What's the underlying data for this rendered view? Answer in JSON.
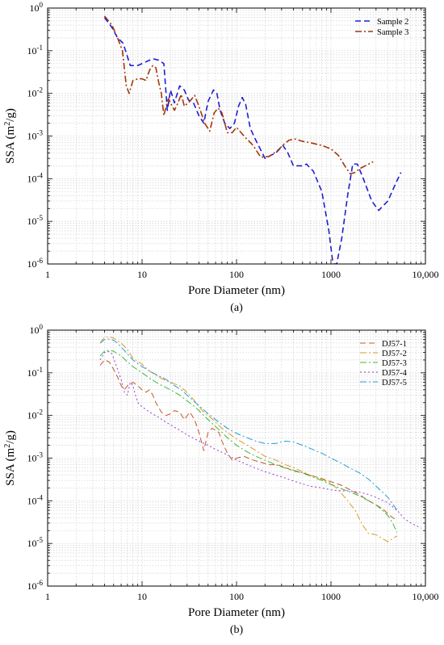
{
  "chart_data": [
    {
      "type": "line",
      "panel_label": "(a)",
      "xlabel": "Pore Diameter (nm)",
      "ylabel": "SSA (m²/g)",
      "xscale": "log",
      "yscale": "log",
      "xlim": [
        1,
        10000
      ],
      "ylim": [
        1e-06,
        1
      ],
      "x_tick_labels": [
        "1",
        "10",
        "100",
        "1000",
        "10,000"
      ],
      "y_tick_labels": [
        "10^-6",
        "10^-5",
        "10^-4",
        "10^-3",
        "10^-2",
        "10^-1",
        "10^0"
      ],
      "grid": true,
      "legend_position": "top-right",
      "series": [
        {
          "name": "Sample 2",
          "color": "#1f1fd1",
          "dash": "dashed",
          "x": [
            4,
            4.8,
            5.5,
            6.3,
            7.5,
            9,
            11,
            13,
            15,
            17,
            18.5,
            20,
            22,
            25,
            28,
            31,
            35,
            40,
            45,
            50,
            57,
            62,
            67,
            75,
            85,
            95,
            105,
            115,
            125,
            140,
            160,
            200,
            260,
            310,
            350,
            400,
            450,
            500,
            550,
            650,
            800,
            950,
            1050,
            1150,
            1300,
            1500,
            1700,
            1900,
            2200,
            2700,
            3200,
            4000,
            5000,
            5500
          ],
          "y": [
            0.6,
            0.35,
            0.2,
            0.15,
            0.045,
            0.045,
            0.055,
            0.065,
            0.06,
            0.05,
            0.004,
            0.012,
            0.006,
            0.015,
            0.012,
            0.007,
            0.006,
            0.003,
            0.002,
            0.0065,
            0.012,
            0.01,
            0.004,
            0.002,
            0.0015,
            0.002,
            0.005,
            0.008,
            0.0055,
            0.0015,
            0.0008,
            0.0003,
            0.0004,
            0.0006,
            0.0004,
            0.0002,
            0.0002,
            0.0002,
            0.00022,
            0.00015,
            5e-05,
            6e-06,
            1e-06,
            1e-06,
            4e-06,
            4e-05,
            0.00022,
            0.00022,
            0.0001,
            3e-05,
            1.8e-05,
            3e-05,
            9e-05,
            0.00014
          ]
        },
        {
          "name": "Sample 3",
          "color": "#a3360b",
          "dash": "dashdot",
          "x": [
            4,
            4.8,
            5.5,
            6.2,
            6.8,
            7.3,
            8,
            9,
            10,
            11,
            12,
            13,
            14,
            15,
            16,
            17,
            18,
            19,
            20,
            22,
            24,
            26,
            28,
            32,
            36,
            40,
            46,
            52,
            58,
            64,
            70,
            80,
            90,
            100,
            120,
            150,
            180,
            220,
            270,
            320,
            360,
            420,
            500,
            600,
            800,
            1000,
            1200,
            1400,
            1600,
            1800,
            2000,
            2400,
            2800
          ],
          "y": [
            0.65,
            0.4,
            0.2,
            0.1,
            0.015,
            0.01,
            0.02,
            0.022,
            0.022,
            0.02,
            0.035,
            0.045,
            0.04,
            0.018,
            0.01,
            0.003,
            0.005,
            0.0075,
            0.006,
            0.004,
            0.006,
            0.0095,
            0.005,
            0.0065,
            0.009,
            0.005,
            0.002,
            0.0013,
            0.0035,
            0.0045,
            0.0035,
            0.0012,
            0.0012,
            0.0016,
            0.001,
            0.0006,
            0.00032,
            0.00033,
            0.00045,
            0.00065,
            0.0008,
            0.00085,
            0.00075,
            0.0007,
            0.0006,
            0.0005,
            0.00035,
            0.0002,
            0.00013,
            0.00014,
            0.00017,
            0.00021,
            0.00025
          ]
        }
      ]
    },
    {
      "type": "line",
      "panel_label": "(b)",
      "xlabel": "Pore Diameter (nm)",
      "ylabel": "SSA (m²/g)",
      "xscale": "log",
      "yscale": "log",
      "xlim": [
        1,
        10000
      ],
      "ylim": [
        1e-06,
        1
      ],
      "x_tick_labels": [
        "1",
        "10",
        "100",
        "1000",
        "10,000"
      ],
      "y_tick_labels": [
        "10^-6",
        "10^-5",
        "10^-4",
        "10^-3",
        "10^-2",
        "10^-1",
        "10^0"
      ],
      "grid": true,
      "legend_position": "top-right",
      "series": [
        {
          "name": "DJ57-1",
          "color": "#c2552b",
          "dash": "dashed",
          "x": [
            3.6,
            4,
            4.5,
            5,
            5.5,
            6,
            6.5,
            7,
            8,
            9,
            10,
            11,
            12,
            13,
            14,
            16,
            18,
            20,
            22,
            25,
            28,
            32,
            36,
            40,
            45,
            50,
            55,
            60,
            65,
            70,
            80,
            90,
            100,
            120,
            150,
            180,
            220,
            270,
            330,
            400,
            500,
            600,
            800,
            1000,
            1300,
            1600,
            2000,
            2500,
            3000,
            3500,
            4000,
            4500,
            5000
          ],
          "y": [
            0.15,
            0.2,
            0.18,
            0.12,
            0.08,
            0.05,
            0.04,
            0.05,
            0.06,
            0.05,
            0.04,
            0.035,
            0.04,
            0.03,
            0.02,
            0.012,
            0.01,
            0.011,
            0.013,
            0.012,
            0.008,
            0.012,
            0.008,
            0.004,
            0.0015,
            0.004,
            0.005,
            0.0045,
            0.004,
            0.0025,
            0.0013,
            0.0009,
            0.001,
            0.0011,
            0.0009,
            0.0008,
            0.0007,
            0.0007,
            0.0006,
            0.0005,
            0.00045,
            0.0004,
            0.00033,
            0.00028,
            0.00023,
            0.00018,
            0.00014,
            0.0001,
            8e-05,
            6.5e-05,
            5e-05,
            4e-05,
            3.5e-05
          ]
        },
        {
          "name": "DJ57-2",
          "color": "#d89b28",
          "dash": "dashdot",
          "x": [
            3.6,
            4,
            4.5,
            5,
            6,
            7,
            8,
            10,
            12,
            15,
            18,
            20,
            22,
            25,
            28,
            32,
            36,
            40,
            45,
            50,
            60,
            70,
            80,
            100,
            130,
            160,
            200,
            260,
            330,
            400,
            500,
            600,
            800,
            1000,
            1200,
            1500,
            1800,
            2100,
            2500,
            3000,
            3500,
            4000,
            4500,
            5000
          ],
          "y": [
            0.5,
            0.68,
            0.7,
            0.65,
            0.5,
            0.35,
            0.22,
            0.16,
            0.11,
            0.08,
            0.065,
            0.06,
            0.055,
            0.05,
            0.04,
            0.03,
            0.022,
            0.016,
            0.012,
            0.01,
            0.007,
            0.005,
            0.004,
            0.0028,
            0.002,
            0.0015,
            0.0011,
            0.0009,
            0.0007,
            0.0006,
            0.00048,
            0.0004,
            0.00032,
            0.00026,
            0.00018,
            0.0001,
            6e-05,
            3e-05,
            1.7e-05,
            1.6e-05,
            1.3e-05,
            1.1e-05,
            1.3e-05,
            1.5e-05
          ]
        },
        {
          "name": "DJ57-3",
          "color": "#3cb83c",
          "dash": "dashdot",
          "x": [
            3.6,
            4,
            4.5,
            5,
            6,
            7,
            8,
            10,
            12,
            15,
            18,
            20,
            25,
            30,
            35,
            40,
            45,
            50,
            60,
            70,
            80,
            100,
            130,
            160,
            200,
            260,
            330,
            400,
            500,
            600,
            800,
            1000,
            1300,
            1600,
            2000,
            2500,
            3000,
            3500,
            4000,
            4500,
            5000
          ],
          "y": [
            0.25,
            0.32,
            0.34,
            0.32,
            0.25,
            0.18,
            0.14,
            0.1,
            0.075,
            0.055,
            0.045,
            0.04,
            0.03,
            0.022,
            0.017,
            0.013,
            0.01,
            0.008,
            0.0055,
            0.004,
            0.003,
            0.002,
            0.0014,
            0.0011,
            0.0009,
            0.0007,
            0.00058,
            0.00052,
            0.00045,
            0.00038,
            0.0003,
            0.00024,
            0.00019,
            0.00016,
            0.00013,
            0.0001,
            8e-05,
            6e-05,
            4.5e-05,
            3e-05,
            1.8e-05
          ]
        },
        {
          "name": "DJ57-4",
          "color": "#9a3bd4",
          "dash": "dotted",
          "x": [
            3.6,
            4,
            4.3,
            4.7,
            5,
            5.5,
            6,
            6.5,
            7,
            7.5,
            8,
            8.5,
            9,
            10,
            12,
            15,
            20,
            25,
            30,
            40,
            50,
            60,
            80,
            100,
            130,
            160,
            200,
            260,
            330,
            400,
            500,
            600,
            800,
            1000,
            1300,
            1600,
            2000,
            2500,
            3000,
            4000,
            5000,
            6000,
            7000,
            8000,
            9000
          ],
          "y": [
            0.2,
            0.3,
            0.32,
            0.3,
            0.22,
            0.12,
            0.07,
            0.035,
            0.03,
            0.06,
            0.05,
            0.03,
            0.02,
            0.016,
            0.012,
            0.009,
            0.006,
            0.0045,
            0.0035,
            0.0025,
            0.002,
            0.0016,
            0.0012,
            0.0009,
            0.0007,
            0.00058,
            0.00048,
            0.0004,
            0.00034,
            0.00029,
            0.00025,
            0.00022,
            0.0002,
            0.00018,
            0.00017,
            0.00017,
            0.00016,
            0.00014,
            0.00012,
            9e-05,
            6e-05,
            3.8e-05,
            3e-05,
            2.6e-05,
            2.3e-05
          ]
        },
        {
          "name": "DJ57-5",
          "color": "#2b9bd3",
          "dash": "dashdot",
          "x": [
            3.6,
            4,
            4.5,
            5,
            5.5,
            6,
            7,
            8,
            10,
            12,
            15,
            18,
            22,
            26,
            30,
            35,
            40,
            50,
            60,
            80,
            100,
            130,
            160,
            200,
            260,
            300,
            330,
            400,
            500,
            600,
            800,
            1000,
            1300,
            1600,
            2000,
            2500,
            3000,
            3500,
            4000,
            4500,
            5000
          ],
          "y": [
            0.5,
            0.6,
            0.62,
            0.58,
            0.5,
            0.4,
            0.28,
            0.2,
            0.14,
            0.11,
            0.085,
            0.07,
            0.05,
            0.04,
            0.03,
            0.022,
            0.017,
            0.011,
            0.008,
            0.005,
            0.0038,
            0.003,
            0.0025,
            0.0022,
            0.0022,
            0.0024,
            0.0025,
            0.0024,
            0.002,
            0.0017,
            0.0013,
            0.001,
            0.00075,
            0.00058,
            0.00045,
            0.00032,
            0.00022,
            0.00016,
            0.00012,
            8.5e-05,
            6e-05
          ]
        }
      ]
    }
  ]
}
